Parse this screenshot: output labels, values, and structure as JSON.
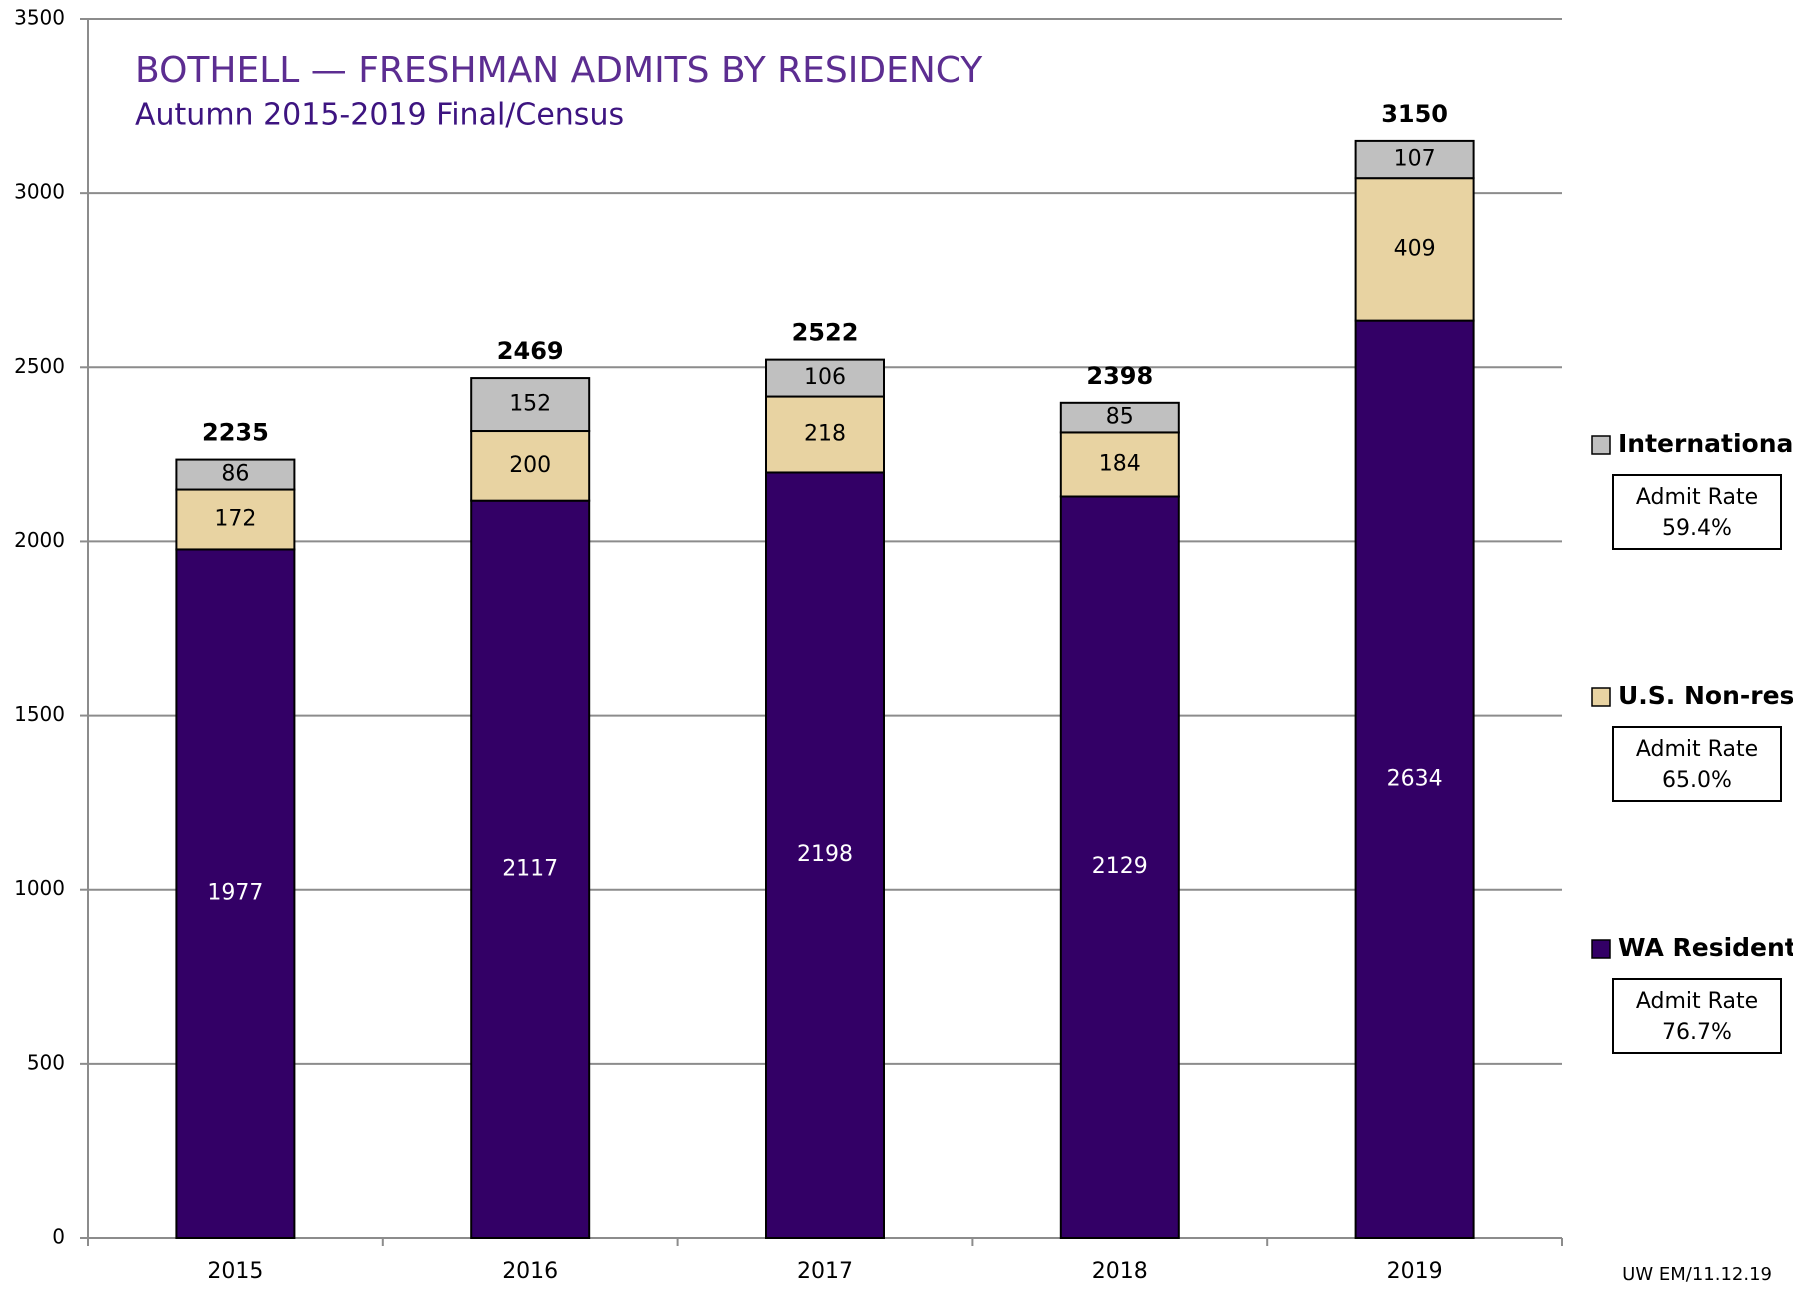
{
  "chart_data": {
    "type": "stacked_bar",
    "title": "BOTHELL — FRESHMAN ADMITS BY RESIDENCY",
    "subtitle": "Autumn 2015-2019 Final/Census",
    "categories": [
      "2015",
      "2016",
      "2017",
      "2018",
      "2019"
    ],
    "series": [
      {
        "name": "WA Residents",
        "color": "#330066",
        "values": [
          1977,
          2117,
          2198,
          2129,
          2634
        ],
        "admit_rate": "76.7%"
      },
      {
        "name": "U.S. Non-res",
        "color": "#e8d3a2",
        "values": [
          172,
          200,
          218,
          184,
          409
        ],
        "admit_rate": "65.0%"
      },
      {
        "name": "International",
        "color": "#c0c0c0",
        "values": [
          86,
          152,
          106,
          85,
          107
        ],
        "admit_rate": "59.4%"
      }
    ],
    "totals": [
      2235,
      2469,
      2522,
      2398,
      3150
    ],
    "admit_rate_label": "Admit Rate",
    "footnote": "UW EM/11.12.19",
    "ylim": [
      0,
      3500
    ],
    "yticks": [
      0,
      500,
      1000,
      1500,
      2000,
      2500,
      3000,
      3500
    ],
    "grid": true,
    "legend": "right"
  }
}
